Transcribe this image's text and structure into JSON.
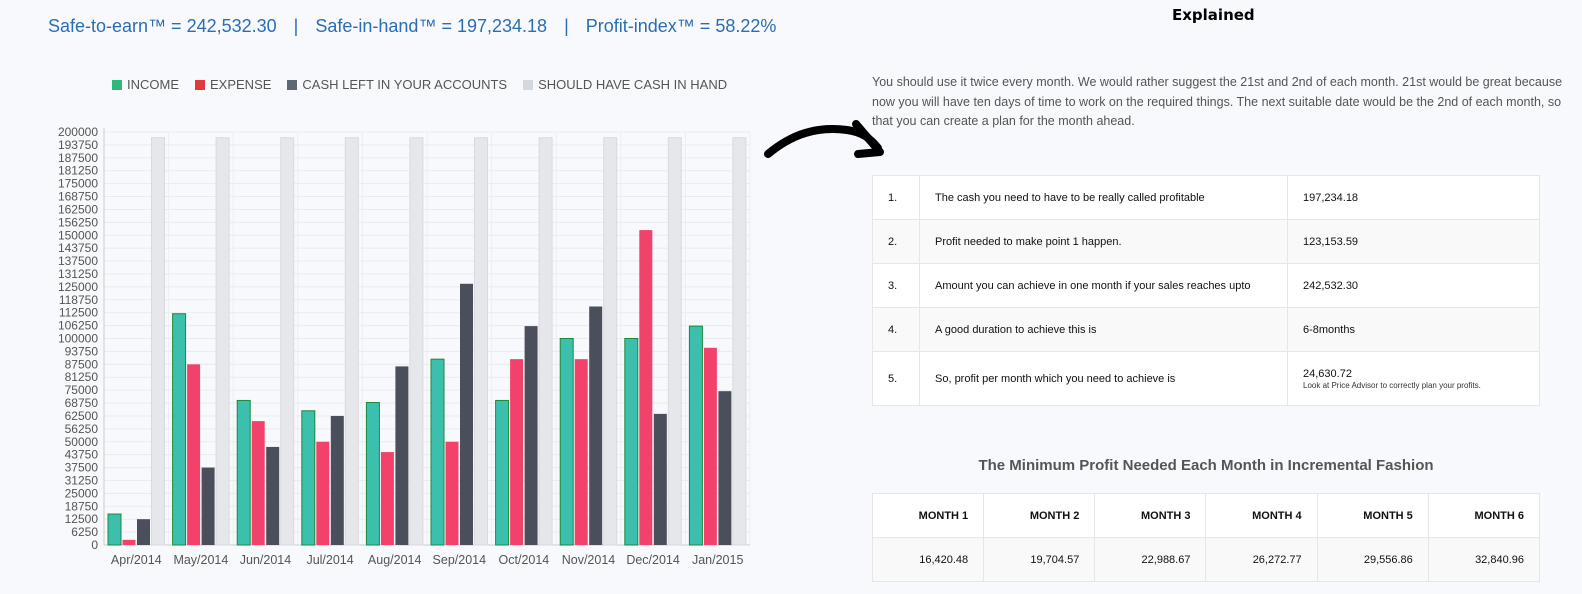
{
  "kpi": {
    "safe_to_earn": "Safe-to-earn™ = 242,532.30",
    "separator": "|",
    "safe_in_hand": "Safe-in-hand™ = 197,234.18",
    "profit_index": "Profit-index™ = 58.22%"
  },
  "explained_title": "Explained",
  "paragraph": "You should use it twice every month. We would rather suggest the 21st and 2nd of each month. 21st would be great because now you will have ten days of time to work on the required things. The next suitable date would be the 2nd of each month, so that you can create a plan for the month ahead.",
  "info_rows": [
    {
      "n": "1.",
      "desc": "The cash you need to have to be really called profitable",
      "value": "197,234.18",
      "note": ""
    },
    {
      "n": "2.",
      "desc": "Profit needed to make point 1 happen.",
      "value": "123,153.59",
      "note": ""
    },
    {
      "n": "3.",
      "desc": "Amount you can achieve in one month if your sales reaches upto",
      "value": "242,532.30",
      "note": ""
    },
    {
      "n": "4.",
      "desc": "A good duration to achieve this is",
      "value": "6-8months",
      "note": ""
    },
    {
      "n": "5.",
      "desc": "So, profit per month which you need to achieve is",
      "value": "24,630.72",
      "note": "Look at Price Advisor to correctly plan your profits."
    }
  ],
  "min_profit": {
    "title": "The Minimum Profit Needed Each Month in Incremental Fashion",
    "headers": [
      "MONTH 1",
      "MONTH 2",
      "MONTH 3",
      "MONTH 4",
      "MONTH 5",
      "MONTH 6"
    ],
    "values": [
      "16,420.48",
      "19,704.57",
      "22,988.67",
      "26,272.77",
      "29,556.86",
      "32,840.96"
    ]
  },
  "colors": {
    "income": "#3dbfae",
    "income_border": "#1a8a3a",
    "expense": "#f2426c",
    "cash_left": "#4b4f5c",
    "should_have": "#e6e7ea",
    "kpi_text": "#2a6db5"
  },
  "chart_data": {
    "type": "bar",
    "categories": [
      "Apr/2014",
      "May/2014",
      "Jun/2014",
      "Jul/2014",
      "Aug/2014",
      "Sep/2014",
      "Oct/2014",
      "Nov/2014",
      "Dec/2014",
      "Jan/2015"
    ],
    "series": [
      {
        "name": "INCOME",
        "values": [
          15000,
          112000,
          70000,
          65000,
          69000,
          90000,
          70000,
          100000,
          100000,
          106000
        ]
      },
      {
        "name": "EXPENSE",
        "values": [
          2500,
          87500,
          60000,
          50000,
          45000,
          50000,
          90000,
          90000,
          152500,
          95500
        ]
      },
      {
        "name": "CASH LEFT IN YOUR ACCOUNTS",
        "values": [
          12500,
          37500,
          47500,
          62500,
          86500,
          126500,
          106000,
          115500,
          63500,
          74500
        ]
      },
      {
        "name": "SHOULD HAVE CASH IN HAND",
        "values": [
          197234,
          197234,
          197234,
          197234,
          197234,
          197234,
          197234,
          197234,
          197234,
          197234
        ]
      }
    ],
    "yticks": [
      "0",
      "6250",
      "12500",
      "18750",
      "25000",
      "31250",
      "37500",
      "43750",
      "50000",
      "56250",
      "62500",
      "68750",
      "75000",
      "81250",
      "87500",
      "93750",
      "100000",
      "106250",
      "112500",
      "118750",
      "125000",
      "131250",
      "137500",
      "143750",
      "150000",
      "156250",
      "162500",
      "168750",
      "175000",
      "181250",
      "187500",
      "193750",
      "200000"
    ],
    "ylim": [
      0,
      200000
    ],
    "legend_position": "top",
    "grid": true
  }
}
